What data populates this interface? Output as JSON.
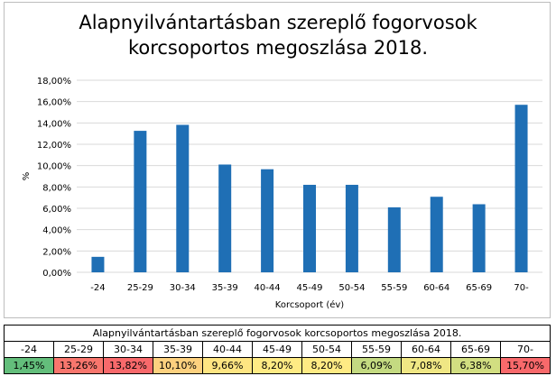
{
  "chart_data": {
    "type": "bar",
    "title_lines": [
      "Alapnyilvántartásban szereplő fogorvosok",
      "korcsoportos megoszlása 2018."
    ],
    "xlabel": "Korcsoport (év)",
    "ylabel": "%",
    "categories": [
      "-24",
      "25-29",
      "30-34",
      "35-39",
      "40-44",
      "45-49",
      "50-54",
      "55-59",
      "60-64",
      "65-69",
      "70-"
    ],
    "values": [
      1.45,
      13.26,
      13.82,
      10.1,
      9.66,
      8.2,
      8.2,
      6.09,
      7.08,
      6.38,
      15.7
    ],
    "ylim": [
      0,
      18
    ],
    "ytick_labels": [
      "0,00%",
      "2,00%",
      "4,00%",
      "6,00%",
      "8,00%",
      "10,00%",
      "12,00%",
      "14,00%",
      "16,00%",
      "18,00%"
    ],
    "grid": true,
    "legend": "none",
    "bar_color": "#1f6fb5"
  },
  "table": {
    "caption": "Alapnyilvántartásban szereplő fogorvosok korcsoportos megoszlása 2018.",
    "headers": [
      "-24",
      "25-29",
      "30-34",
      "35-39",
      "40-44",
      "45-49",
      "50-54",
      "55-59",
      "60-64",
      "65-69",
      "70-"
    ],
    "values": [
      "1,45%",
      "13,26%",
      "13,82%",
      "10,10%",
      "9,66%",
      "8,20%",
      "8,20%",
      "6,09%",
      "7,08%",
      "6,38%",
      "15,70%"
    ],
    "cell_colors": [
      "#63be7b",
      "#f8766d",
      "#f8696b",
      "#fdd17f",
      "#fee582",
      "#ffeb84",
      "#ffeb84",
      "#c4da81",
      "#f0e784",
      "#d2de81",
      "#f8696b"
    ]
  }
}
